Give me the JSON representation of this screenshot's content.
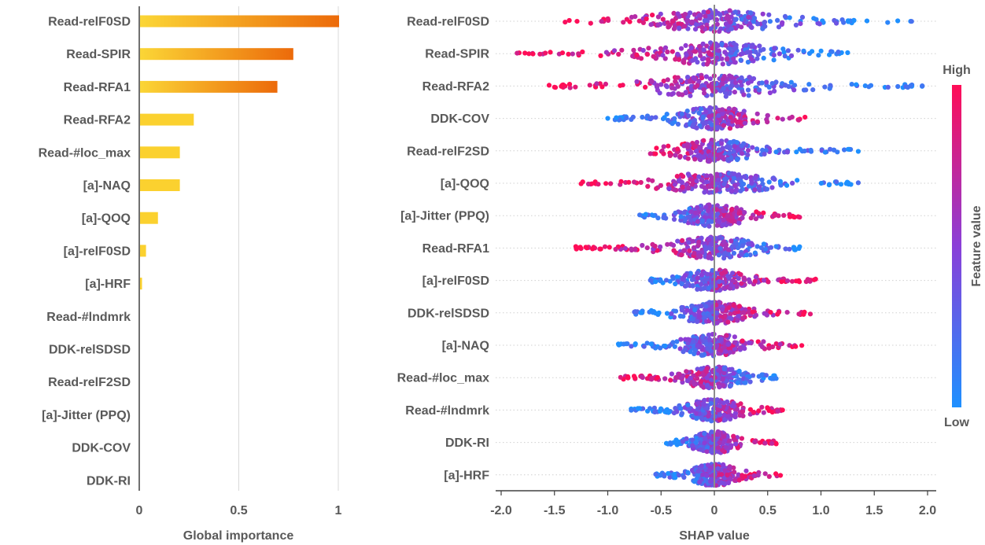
{
  "chart_data": [
    {
      "type": "bar",
      "orientation": "horizontal",
      "categories": [
        "Read-relF0SD",
        "Read-SPIR",
        "Read-RFA1",
        "Read-RFA2",
        "Read-#loc_max",
        "[a]-NAQ",
        "[a]-QOQ",
        "[a]-relF0SD",
        "[a]-HRF",
        "Read-#lndmrk",
        "DDK-relSDSD",
        "Read-relF2SD",
        "[a]-Jitter (PPQ)",
        "DDK-COV",
        "DDK-RI"
      ],
      "values": [
        1.0,
        0.77,
        0.69,
        0.27,
        0.2,
        0.2,
        0.09,
        0.03,
        0.01,
        0,
        0,
        0,
        0,
        0,
        0
      ],
      "xlabel": "Global importance",
      "xlim": [
        0,
        1
      ],
      "xticks": [
        "0",
        "0.5",
        "1"
      ],
      "grid": true,
      "colors": {
        "low": "#FBD636",
        "high": "#EC6A0A"
      }
    },
    {
      "type": "scatter",
      "subtype": "beeswarm",
      "categories": [
        "Read-relF0SD",
        "Read-SPIR",
        "Read-RFA2",
        "DDK-COV",
        "Read-relF2SD",
        "[a]-QOQ",
        "[a]-Jitter (PPQ)",
        "Read-RFA1",
        "[a]-relF0SD",
        "DDK-relSDSD",
        "[a]-NAQ",
        "Read-#loc_max",
        "Read-#lndmrk",
        "DDK-RI",
        "[a]-HRF"
      ],
      "ranges": [
        [
          -1.4,
          1.85
        ],
        [
          -1.85,
          1.25
        ],
        [
          -1.55,
          1.95
        ],
        [
          -1.0,
          0.85
        ],
        [
          -0.6,
          1.35
        ],
        [
          -1.25,
          1.35
        ],
        [
          -0.7,
          0.8
        ],
        [
          -1.3,
          0.8
        ],
        [
          -0.6,
          0.95
        ],
        [
          -0.75,
          0.9
        ],
        [
          -0.9,
          0.82
        ],
        [
          -0.88,
          0.58
        ],
        [
          -0.78,
          0.64
        ],
        [
          -0.45,
          0.58
        ],
        [
          -0.55,
          0.62
        ]
      ],
      "low_feature_side": [
        "right",
        "right",
        "right",
        "left",
        "right",
        "right",
        "left",
        "right",
        "left",
        "left",
        "left",
        "right",
        "left",
        "left",
        "left"
      ],
      "xlabel": "SHAP value",
      "xlim": [
        -2.0,
        2.0
      ],
      "xticks": [
        "-2.0",
        "-1.5",
        "-1.0",
        "-0.5",
        "0",
        "0.5",
        "1.0",
        "1.5",
        "2.0"
      ],
      "colorbar": {
        "title": "Feature value",
        "high": "High",
        "low": "Low",
        "colors": {
          "low": "#1E90FF",
          "mid": "#8A3FD8",
          "high": "#FF0D57"
        }
      }
    }
  ]
}
